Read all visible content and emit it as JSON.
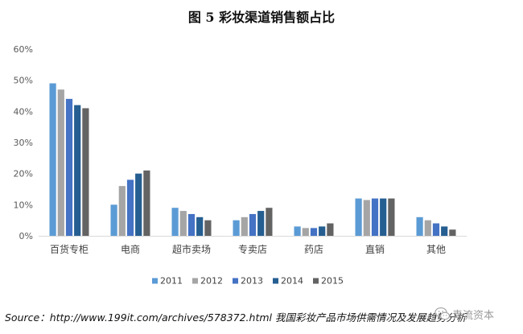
{
  "chart_data": {
    "type": "bar",
    "title": "图 5 彩妆渠道销售额占比",
    "categories": [
      "百货专柜",
      "电商",
      "超市卖场",
      "专卖店",
      "药店",
      "直销",
      "其他"
    ],
    "series": [
      {
        "name": "2011",
        "color": "#5b9bd5",
        "values": [
          49,
          10,
          9,
          5,
          3,
          12,
          6
        ]
      },
      {
        "name": "2012",
        "color": "#a5a5a5",
        "values": [
          47,
          16,
          8,
          6,
          2.5,
          11.5,
          5
        ]
      },
      {
        "name": "2013",
        "color": "#4472c4",
        "values": [
          44,
          18,
          7,
          7,
          2.5,
          12,
          4
        ]
      },
      {
        "name": "2014",
        "color": "#255e91",
        "values": [
          42,
          20,
          6,
          8,
          3,
          12,
          3
        ]
      },
      {
        "name": "2015",
        "color": "#636363",
        "values": [
          41,
          21,
          5,
          9,
          4,
          12,
          2
        ]
      }
    ],
    "ylim": [
      0,
      60
    ],
    "yticks": [
      "0%",
      "10%",
      "20%",
      "30%",
      "40%",
      "50%",
      "60%"
    ],
    "xlabel": "",
    "ylabel": "",
    "grid": false,
    "legend_position": "bottom"
  },
  "source": "Source：http://www.199it.com/archives/578372.html 我国彩妆产品市场供需情况及发展趋势分析",
  "watermark": "青流资本"
}
